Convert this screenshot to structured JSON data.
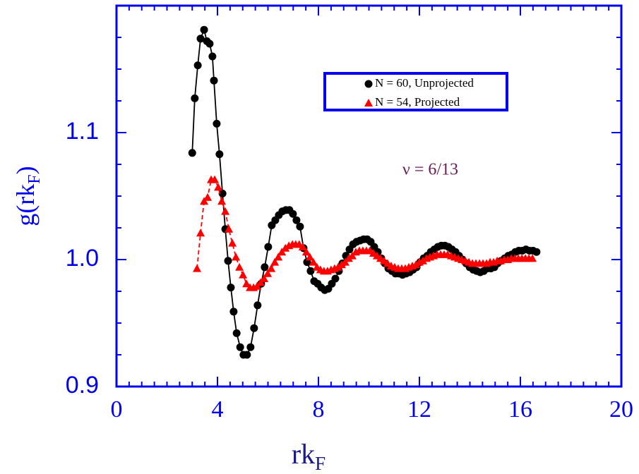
{
  "chart_data": {
    "type": "line",
    "x_label": {
      "text": "rk",
      "subscript": "F"
    },
    "y_label": {
      "text": "g(rk",
      "subscript": "F",
      "suffix": ")"
    },
    "annotation": "ν = 6/13",
    "xlim": [
      0,
      20
    ],
    "ylim": [
      0.9,
      1.2
    ],
    "xticks": [
      0,
      4,
      8,
      12,
      16,
      20
    ],
    "xticks_minor": [
      0.5,
      1,
      1.5,
      2,
      2.5,
      3,
      3.5,
      4.5,
      5,
      5.5,
      6,
      6.5,
      7,
      7.5,
      8.5,
      9,
      9.5,
      10,
      10.5,
      11,
      11.5,
      12.5,
      13,
      13.5,
      14,
      14.5,
      15,
      15.5,
      16.5,
      17,
      17.5,
      18,
      18.5,
      19,
      19.5
    ],
    "yticks": [
      0.9,
      {
        "value": 1,
        "label": "1.0"
      },
      1.1
    ],
    "yticks_minor": [
      0.925,
      0.95,
      0.975,
      1.025,
      1.05,
      1.075,
      1.125,
      1.15,
      1.175,
      1.2
    ],
    "series": [
      {
        "name": "N = 60, Unprojected",
        "color": "#000000",
        "marker": "circle",
        "dashed": false,
        "x": [
          3.0,
          3.1,
          3.22,
          3.33,
          3.47,
          3.58,
          3.69,
          3.8,
          3.86,
          3.97,
          4.08,
          4.2,
          4.31,
          4.42,
          4.53,
          4.64,
          4.76,
          4.9,
          5.03,
          5.17,
          5.31,
          5.45,
          5.59,
          5.73,
          5.87,
          6.01,
          6.15,
          6.29,
          6.43,
          6.57,
          6.71,
          6.85,
          6.99,
          7.13,
          7.27,
          7.41,
          7.55,
          7.69,
          7.83,
          7.97,
          8.11,
          8.25,
          8.39,
          8.53,
          8.67,
          8.81,
          8.95,
          9.09,
          9.23,
          9.37,
          9.51,
          9.65,
          9.79,
          9.93,
          10.07,
          10.21,
          10.35,
          10.49,
          10.63,
          10.77,
          10.91,
          11.05,
          11.19,
          11.33,
          11.47,
          11.61,
          11.75,
          11.89,
          12.03,
          12.17,
          12.31,
          12.45,
          12.59,
          12.73,
          12.87,
          13.01,
          13.15,
          13.29,
          13.43,
          13.57,
          13.71,
          13.85,
          13.99,
          14.13,
          14.27,
          14.41,
          14.55,
          14.69,
          14.83,
          14.97,
          15.1,
          15.24,
          15.38,
          15.52,
          15.66,
          15.8,
          15.94,
          16.08,
          16.22,
          16.36,
          16.5,
          16.64
        ],
        "values": [
          1.084,
          1.127,
          1.153,
          1.174,
          1.181,
          1.172,
          1.17,
          1.16,
          1.141,
          1.107,
          1.083,
          1.052,
          1.024,
          0.999,
          0.978,
          0.959,
          0.942,
          0.931,
          0.925,
          0.925,
          0.931,
          0.946,
          0.964,
          0.981,
          0.994,
          1.01,
          1.027,
          1.031,
          1.035,
          1.038,
          1.039,
          1.039,
          1.036,
          1.031,
          1.026,
          1.009,
          0.998,
          0.991,
          0.983,
          0.981,
          0.978,
          0.976,
          0.977,
          0.981,
          0.985,
          0.991,
          0.997,
          1.003,
          1.008,
          1.012,
          1.014,
          1.015,
          1.016,
          1.016,
          1.014,
          1.01,
          1.006,
          1.001,
          0.997,
          0.993,
          0.991,
          0.989,
          0.989,
          0.988,
          0.989,
          0.99,
          0.992,
          0.994,
          0.998,
          1.001,
          1.003,
          1.006,
          1.008,
          1.01,
          1.011,
          1.011,
          1.01,
          1.008,
          1.006,
          1.003,
          1.0,
          0.997,
          0.994,
          0.992,
          0.991,
          0.99,
          0.991,
          0.993,
          0.993,
          0.994,
          0.997,
          0.999,
          1.001,
          1.003,
          1.004,
          1.006,
          1.007,
          1.007,
          1.008,
          1.007,
          1.007,
          1.006
        ]
      },
      {
        "name": "N = 54, Projected",
        "color": "#ff0000",
        "marker": "triangle",
        "dashed": true,
        "x": [
          3.19,
          3.33,
          3.47,
          3.61,
          3.75,
          3.89,
          4.03,
          4.17,
          4.31,
          4.45,
          4.59,
          4.73,
          4.87,
          5.01,
          5.15,
          5.29,
          5.43,
          5.57,
          5.71,
          5.85,
          5.99,
          6.13,
          6.27,
          6.41,
          6.55,
          6.69,
          6.83,
          6.97,
          7.1,
          7.24,
          7.38,
          7.52,
          7.66,
          7.8,
          7.94,
          8.08,
          8.22,
          8.36,
          8.5,
          8.64,
          8.78,
          8.92,
          9.06,
          9.2,
          9.34,
          9.48,
          9.62,
          9.76,
          9.9,
          10.04,
          10.18,
          10.32,
          10.46,
          10.6,
          10.74,
          10.88,
          11.02,
          11.16,
          11.3,
          11.44,
          11.58,
          11.72,
          11.86,
          12.0,
          12.14,
          12.28,
          12.42,
          12.56,
          12.7,
          12.84,
          12.98,
          13.12,
          13.26,
          13.4,
          13.54,
          13.68,
          13.82,
          13.96,
          14.1,
          14.24,
          14.38,
          14.52,
          14.66,
          14.8,
          14.94,
          15.08,
          15.22,
          15.36,
          15.5,
          15.64,
          15.78,
          15.92,
          16.06,
          16.2,
          16.34,
          16.48
        ],
        "values": [
          0.993,
          1.021,
          1.046,
          1.049,
          1.063,
          1.063,
          1.057,
          1.046,
          1.038,
          1.024,
          1.013,
          1.002,
          0.994,
          0.988,
          0.981,
          0.978,
          0.978,
          0.979,
          0.982,
          0.985,
          0.989,
          0.993,
          0.998,
          1.002,
          1.006,
          1.009,
          1.011,
          1.012,
          1.012,
          1.012,
          1.01,
          1.006,
          1.002,
          0.998,
          0.994,
          0.992,
          0.991,
          0.991,
          0.992,
          0.993,
          0.994,
          0.996,
          0.998,
          1.001,
          1.003,
          1.006,
          1.007,
          1.007,
          1.007,
          1.007,
          1.005,
          1.003,
          1.001,
          0.999,
          0.997,
          0.995,
          0.994,
          0.993,
          0.993,
          0.993,
          0.994,
          0.995,
          0.996,
          0.998,
          0.999,
          1.001,
          1.002,
          1.003,
          1.004,
          1.004,
          1.004,
          1.004,
          1.003,
          1.002,
          1.001,
          1.0,
          0.999,
          0.998,
          0.997,
          0.997,
          0.997,
          0.997,
          0.997,
          0.998,
          0.998,
          0.999,
          0.999,
          1.0,
          1.0,
          1.001,
          1.001,
          1.001,
          1.001,
          1.001,
          1.001,
          1.001
        ]
      }
    ],
    "frame_color": "#0000ee",
    "annotation_color": "#6b1a5a"
  }
}
